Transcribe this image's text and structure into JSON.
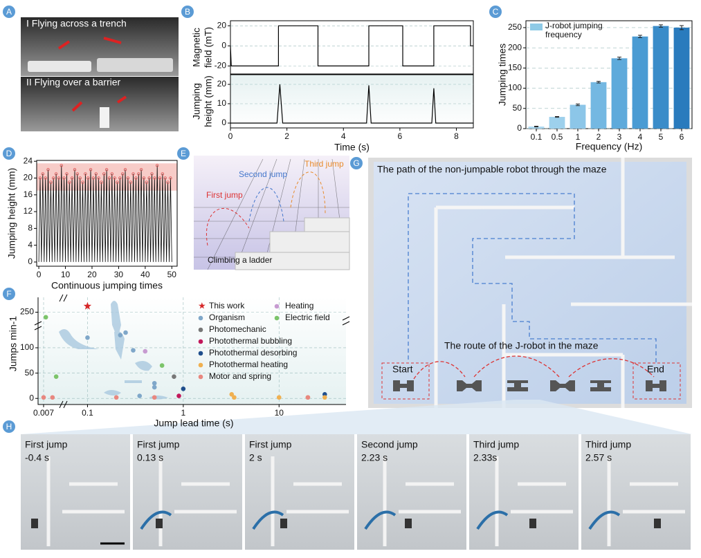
{
  "panel_labels": [
    "A",
    "B",
    "C",
    "D",
    "E",
    "F",
    "G",
    "H"
  ],
  "panel_a": {
    "captions": [
      "I  Flying across a trench",
      "II  Flying over a barrier"
    ]
  },
  "panel_e": {
    "labels": [
      "Third jump",
      "Second jump",
      "First jump",
      "Climbing a ladder"
    ]
  },
  "panel_g": {
    "title": "The path of the non-jumpable robot through the maze",
    "route": "The route of the J-robot in the maze",
    "start": "Start",
    "end": "End"
  },
  "panel_h": {
    "frames": [
      {
        "event": "First jump",
        "time": "-0.4 s"
      },
      {
        "event": "First jump",
        "time": "0.13 s"
      },
      {
        "event": "First jump",
        "time": "2 s"
      },
      {
        "event": "Second jump",
        "time": "2.23 s"
      },
      {
        "event": "Third jump",
        "time": "2.33s"
      },
      {
        "event": "Third jump",
        "time": "2.57 s"
      }
    ]
  },
  "chart_data": [
    {
      "type": "line",
      "ylabel": [
        "Magnetic",
        "field (mT)"
      ],
      "x": [
        0,
        0.03,
        1.7,
        1.7,
        3.1,
        3.1,
        4.9,
        4.9,
        6.1,
        6.1,
        7.2,
        7.2,
        8.5,
        8.5,
        8.6
      ],
      "values": [
        0,
        -20,
        -20,
        20,
        20,
        -20,
        -20,
        20,
        20,
        -20,
        -20,
        20,
        20,
        0,
        0
      ],
      "color": "#000000",
      "xlim": [
        0,
        8.6
      ],
      "ylim": [
        -28,
        25
      ],
      "yticks": [
        -20,
        0,
        20
      ],
      "grid": true
    },
    {
      "type": "line",
      "ylabel": [
        "Jumping",
        "height (mm)"
      ],
      "xlabel": "Time (s)",
      "x": [
        0,
        1.65,
        1.75,
        1.85,
        4.82,
        4.9,
        4.98,
        7.13,
        7.2,
        7.27,
        8.6
      ],
      "values": [
        0,
        0,
        20,
        0,
        0,
        19.5,
        0,
        0,
        18,
        0,
        0
      ],
      "color": "#000000",
      "xlim": [
        0,
        8.6
      ],
      "ylim": [
        -2.5,
        25
      ],
      "yticks": [
        0,
        10,
        20
      ],
      "xticks": [
        0,
        2,
        4,
        6,
        8
      ],
      "grid": true
    },
    {
      "type": "bar",
      "xlabel": "Frequency (Hz)",
      "ylabel": "Jumping times",
      "categories": [
        "0.1",
        "0.5",
        "1",
        "2",
        "3",
        "4",
        "5",
        "6"
      ],
      "series": [
        {
          "name": "J-robot jumping frequency",
          "color": "#8ecae6",
          "values": [
            5,
            29,
            59,
            115,
            174,
            228,
            254,
            250
          ],
          "errors": [
            1,
            1,
            2,
            2,
            3,
            3,
            3,
            5
          ]
        }
      ],
      "bar_colors": [
        "#a9d6ef",
        "#9dd0ec",
        "#8cc6e8",
        "#74b8e2",
        "#5eaadb",
        "#4a9bd3",
        "#3a8cc9",
        "#2a7bbd"
      ],
      "ylim": [
        0,
        267
      ],
      "yticks": [
        0,
        50,
        100,
        150,
        200,
        250
      ],
      "grid": true,
      "legend": "upper-left"
    },
    {
      "type": "line",
      "xlabel": "Continuous jumping times",
      "ylabel": "Jumping height (mm)",
      "x": [
        0,
        0.5,
        1,
        1.5,
        2,
        2.5,
        3,
        3.5,
        4,
        4.5,
        5,
        5.5,
        6,
        6.5,
        7,
        7.5,
        8,
        8.5,
        9,
        9.5,
        10,
        10.5,
        11,
        11.5,
        12,
        12.5,
        13,
        13.5,
        14,
        14.5,
        15,
        15.5,
        16,
        16.5,
        17,
        17.5,
        18,
        18.5,
        19,
        19.5,
        20,
        20.5,
        21,
        21.5,
        22,
        22.5,
        23,
        23.5,
        24,
        24.5,
        25,
        25.5,
        26,
        26.5,
        27,
        27.5,
        28,
        28.5,
        29,
        29.5,
        30,
        30.5,
        31,
        31.5,
        32,
        32.5,
        33,
        33.5,
        34,
        34.5,
        35,
        35.5,
        36,
        36.5,
        37,
        37.5,
        38,
        38.5,
        39,
        39.5,
        40,
        40.5,
        41,
        41.5,
        42,
        42.5,
        43,
        43.5,
        44,
        44.5,
        45,
        45.5,
        46,
        46.5,
        47,
        47.5,
        48,
        48.5,
        49,
        49.5,
        50
      ],
      "values": [
        0,
        20,
        0,
        21,
        0,
        20,
        0,
        22,
        0,
        19,
        0,
        20,
        0,
        21,
        0,
        20,
        0,
        23,
        0,
        20,
        0,
        21,
        0,
        19,
        0,
        20,
        0,
        22,
        0,
        21,
        0,
        20,
        0,
        19,
        0,
        21,
        0,
        20,
        0,
        22,
        0,
        20,
        0,
        21,
        0,
        20,
        0,
        19,
        0,
        21,
        0,
        22,
        0,
        20,
        0,
        21,
        0,
        20,
        0,
        19,
        0,
        20,
        0,
        21,
        0,
        22,
        0,
        20,
        0,
        19,
        0,
        21,
        0,
        20,
        0,
        21,
        0,
        22,
        0,
        20,
        0,
        19,
        0,
        20,
        0,
        21,
        0,
        20,
        0,
        23,
        0,
        20,
        0,
        21,
        0,
        20,
        0,
        19,
        0,
        20,
        0
      ],
      "color": "#000000",
      "marker_color": "#e05050",
      "band": [
        17,
        23.5
      ],
      "band_color": "#f4b6b0",
      "xlim": [
        -0.8,
        52
      ],
      "ylim": [
        -1,
        24.2
      ],
      "xticks": [
        0,
        10,
        20,
        30,
        40,
        50
      ],
      "yticks": [
        0,
        4,
        8,
        12,
        16,
        20,
        24
      ]
    },
    {
      "type": "scatter",
      "xlabel": "Jump lead time (s)",
      "ylabel": "Jumps min-1",
      "xscale": "log",
      "xlim": [
        0.005,
        50
      ],
      "xbreak": [
        0.02,
        0.07
      ],
      "ylim": [
        -12,
        270
      ],
      "ybreak": [
        130,
        230
      ],
      "xticks": [
        0.007,
        0.1,
        1,
        10
      ],
      "yticks": [
        0,
        50,
        100,
        250
      ],
      "grid": true,
      "series": [
        {
          "name": "This work",
          "color": "#d62728",
          "marker": "star",
          "x": [
            0.1
          ],
          "values": [
            262
          ]
        },
        {
          "name": "Organism",
          "color": "#7fa7c9",
          "marker": "circle",
          "x": [
            0.1,
            0.25,
            0.22,
            0.3,
            0.5,
            0.5,
            0.35
          ],
          "values": [
            120,
            130,
            125,
            95,
            30,
            22,
            5
          ]
        },
        {
          "name": "Photomechanic",
          "color": "#777777",
          "marker": "circle",
          "x": [
            0.8
          ],
          "values": [
            43
          ]
        },
        {
          "name": "Photothermal bubbling",
          "color": "#c2185b",
          "marker": "circle",
          "x": [
            0.9
          ],
          "values": [
            5
          ]
        },
        {
          "name": "Photothermal desorbing",
          "color": "#1f4e8c",
          "marker": "circle",
          "x": [
            1,
            30
          ],
          "values": [
            19,
            8
          ]
        },
        {
          "name": "Photothermal heating",
          "color": "#f0b050",
          "marker": "circle",
          "x": [
            3.2,
            3.4,
            10,
            20,
            30
          ],
          "values": [
            8,
            2,
            2,
            2,
            2
          ]
        },
        {
          "name": "Motor and spring",
          "color": "#e8877f",
          "marker": "circle",
          "x": [
            0.007,
            0.012,
            0.2,
            0.5,
            20
          ],
          "values": [
            2,
            2,
            2,
            2,
            2
          ]
        },
        {
          "name": "Heating",
          "color": "#c79bd1",
          "marker": "circle",
          "x": [
            0.4
          ],
          "values": [
            93
          ]
        },
        {
          "name": "Electric field",
          "color": "#7cc46a",
          "marker": "circle",
          "x": [
            0.008,
            0.015,
            0.6
          ],
          "values": [
            240,
            43,
            65
          ]
        }
      ]
    }
  ]
}
